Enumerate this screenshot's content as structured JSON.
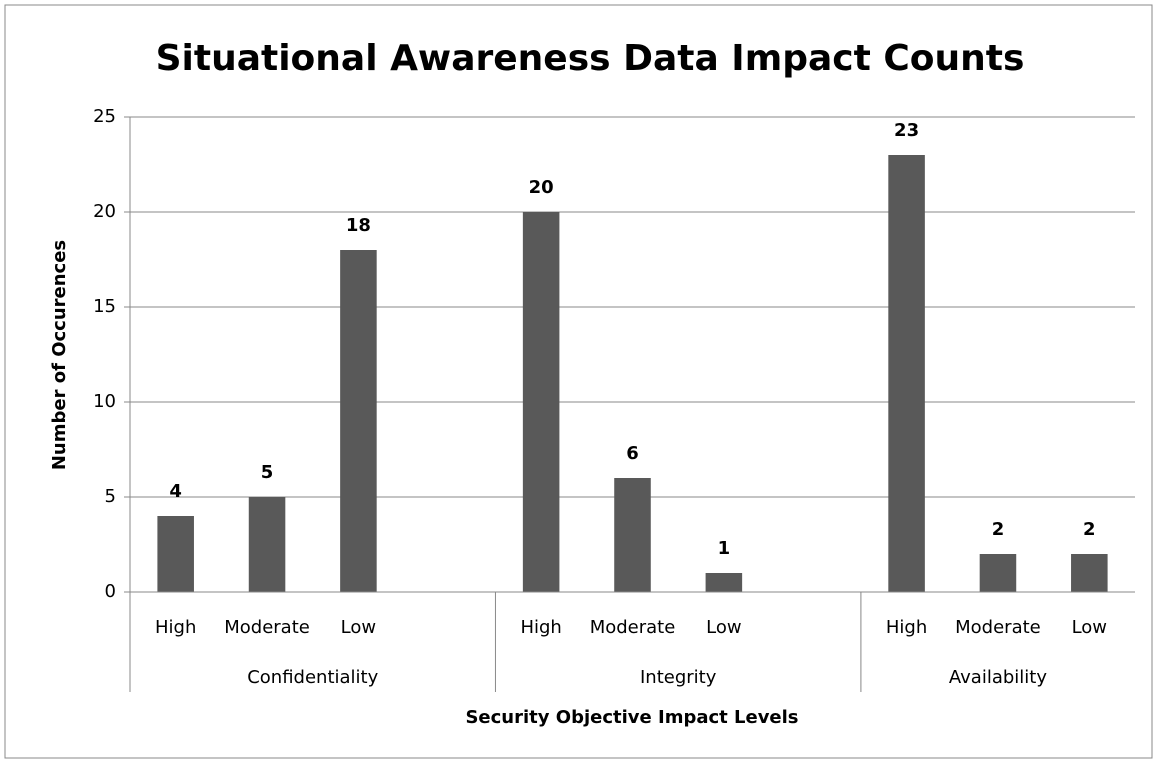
{
  "chart_data": {
    "type": "bar",
    "title": "Situational Awareness Data Impact Counts",
    "x_label": "Security Objective Impact Levels",
    "y_label": "Number of Occurences",
    "color": "#595959",
    "ylim": [
      0,
      25
    ],
    "yticks": [
      0,
      5,
      10,
      15,
      20,
      25
    ],
    "grid": true,
    "groups": [
      {
        "name": "Confidentiality",
        "categories": [
          "High",
          "Moderate",
          "Low"
        ],
        "values": [
          4,
          5,
          18
        ]
      },
      {
        "name": "Integrity",
        "categories": [
          "High",
          "Moderate",
          "Low"
        ],
        "values": [
          20,
          6,
          1
        ]
      },
      {
        "name": "Availability",
        "categories": [
          "High",
          "Moderate",
          "Low"
        ],
        "values": [
          23,
          2,
          2
        ]
      }
    ]
  }
}
